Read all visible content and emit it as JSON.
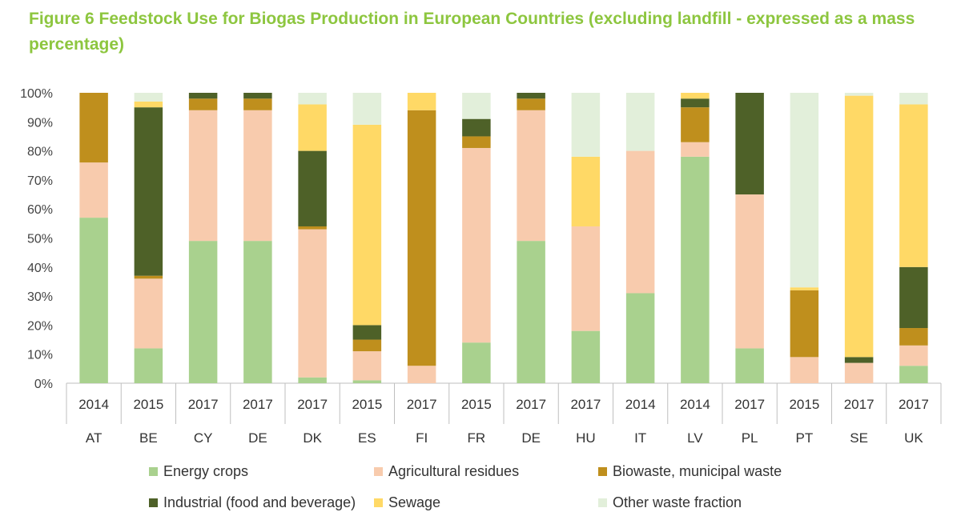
{
  "figure": {
    "title": "Figure 6 Feedstock Use for Biogas Production in European Countries (excluding landfill - expressed as a mass percentage)"
  },
  "chart_data": {
    "type": "bar",
    "stacked": true,
    "ylim": [
      0,
      100
    ],
    "yticks": [
      "0%",
      "10%",
      "20%",
      "30%",
      "40%",
      "50%",
      "60%",
      "70%",
      "80%",
      "90%",
      "100%"
    ],
    "grid": false,
    "legend_position": "bottom",
    "categories": [
      {
        "year": "2014",
        "country": "AT"
      },
      {
        "year": "2015",
        "country": "BE"
      },
      {
        "year": "2017",
        "country": "CY"
      },
      {
        "year": "2017",
        "country": "DE"
      },
      {
        "year": "2017",
        "country": "DK"
      },
      {
        "year": "2015",
        "country": "ES"
      },
      {
        "year": "2017",
        "country": "FI"
      },
      {
        "year": "2015",
        "country": "FR"
      },
      {
        "year": "2017",
        "country": "DE"
      },
      {
        "year": "2017",
        "country": "HU"
      },
      {
        "year": "2014",
        "country": "IT"
      },
      {
        "year": "2014",
        "country": "LV"
      },
      {
        "year": "2017",
        "country": "PL"
      },
      {
        "year": "2015",
        "country": "PT"
      },
      {
        "year": "2017",
        "country": "SE"
      },
      {
        "year": "2017",
        "country": "UK"
      }
    ],
    "series": [
      {
        "name": "Energy crops",
        "color": "#a9d18e",
        "values": [
          57,
          12,
          49,
          49,
          2,
          1,
          0,
          14,
          49,
          18,
          31,
          78,
          12,
          0,
          0,
          6
        ]
      },
      {
        "name": "Agricultural residues",
        "color": "#f8cbad",
        "values": [
          19,
          24,
          45,
          45,
          51,
          10,
          6,
          67,
          45,
          36,
          49,
          5,
          53,
          9,
          7,
          7
        ]
      },
      {
        "name": "Biowaste, municipal waste",
        "color": "#bf8f1d",
        "values": [
          24,
          1,
          4,
          4,
          1,
          4,
          88,
          4,
          4,
          0,
          0,
          12,
          0,
          23,
          0,
          6
        ]
      },
      {
        "name": "Industrial (food and beverage)",
        "color": "#4e6128",
        "values": [
          0,
          58,
          2,
          2,
          26,
          5,
          0,
          6,
          2,
          0,
          0,
          3,
          35,
          0,
          2,
          21
        ]
      },
      {
        "name": "Sewage",
        "color": "#ffd966",
        "values": [
          0,
          2,
          0,
          0,
          16,
          69,
          6,
          0,
          0,
          24,
          0,
          2,
          0,
          1,
          90,
          56
        ]
      },
      {
        "name": "Other waste fraction",
        "color": "#e2efda",
        "values": [
          0,
          3,
          0,
          0,
          4,
          11,
          0,
          9,
          0,
          22,
          20,
          0,
          0,
          67,
          1,
          4
        ]
      }
    ]
  }
}
